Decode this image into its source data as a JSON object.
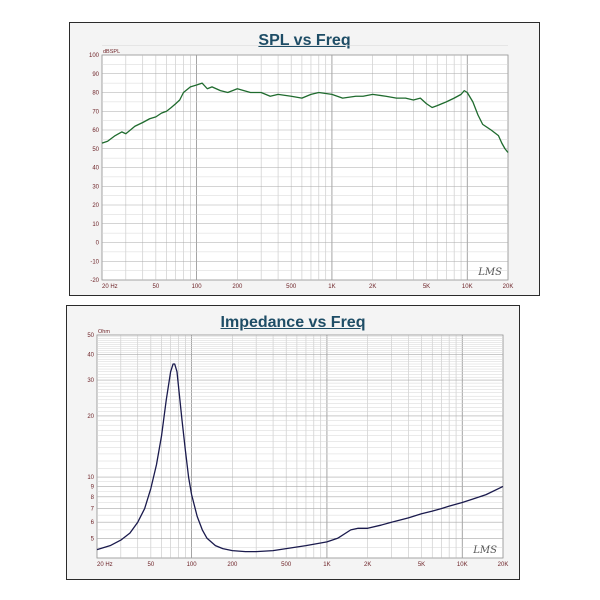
{
  "chart_data": [
    {
      "type": "line",
      "title": "SPL vs Freq",
      "y_unit": "dBSPL",
      "xscale": "log",
      "xlim": [
        20,
        20000
      ],
      "ylim": [
        -20,
        100
      ],
      "grid": true,
      "x_ticks": [
        "20 Hz",
        "50",
        "100",
        "200",
        "500",
        "1K",
        "2K",
        "5K",
        "10K",
        "20K"
      ],
      "y_ticks": [
        "100",
        "90",
        "80",
        "70",
        "60",
        "50",
        "40",
        "30",
        "20",
        "10",
        "0",
        "-10",
        "-20"
      ],
      "watermark": "LMS",
      "series": [
        {
          "color": "#1f6b2e",
          "x": [
            20,
            22,
            25,
            28,
            30,
            35,
            40,
            45,
            50,
            55,
            60,
            65,
            70,
            75,
            80,
            90,
            100,
            110,
            120,
            130,
            150,
            170,
            200,
            250,
            300,
            350,
            400,
            500,
            600,
            700,
            800,
            1000,
            1200,
            1500,
            1700,
            2000,
            2500,
            3000,
            3500,
            4000,
            4500,
            5000,
            5500,
            6000,
            7000,
            8000,
            9000,
            9500,
            10000,
            11000,
            12000,
            13000,
            15000,
            17000,
            18000,
            19000,
            20000
          ],
          "y": [
            53,
            54,
            57,
            59,
            58,
            62,
            64,
            66,
            67,
            69,
            70,
            72,
            74,
            76,
            80,
            83,
            84,
            85,
            82,
            83,
            81,
            80,
            82,
            80,
            80,
            78,
            79,
            78,
            77,
            79,
            80,
            79,
            77,
            78,
            78,
            79,
            78,
            77,
            77,
            76,
            77,
            74,
            72,
            73,
            75,
            77,
            79,
            81,
            80,
            75,
            68,
            63,
            60,
            57,
            53,
            50,
            48
          ]
        }
      ]
    },
    {
      "type": "line",
      "title": "Impedance vs Freq",
      "y_unit": "Ohm",
      "xscale": "log",
      "yscale": "log",
      "xlim": [
        20,
        20000
      ],
      "ylim": [
        4,
        50
      ],
      "grid": true,
      "x_ticks": [
        "20 Hz",
        "50",
        "100",
        "200",
        "500",
        "1K",
        "2K",
        "5K",
        "10K",
        "20K"
      ],
      "y_ticks": [
        "50",
        "40",
        "30",
        "20",
        "10",
        "9",
        "8",
        "7",
        "6",
        "5"
      ],
      "watermark": "LMS",
      "series": [
        {
          "color": "#1a1a4d",
          "x": [
            20,
            25,
            30,
            35,
            40,
            45,
            50,
            55,
            60,
            65,
            70,
            73,
            75,
            78,
            80,
            85,
            90,
            95,
            100,
            110,
            120,
            130,
            150,
            170,
            200,
            250,
            300,
            400,
            500,
            700,
            1000,
            1200,
            1500,
            1700,
            2000,
            2500,
            3000,
            4000,
            5000,
            6000,
            7000,
            8000,
            10000,
            12000,
            15000,
            20000
          ],
          "y": [
            4.4,
            4.6,
            4.9,
            5.3,
            6.0,
            7.0,
            8.8,
            11.5,
            16,
            24,
            33,
            36,
            36,
            33,
            28,
            19,
            13.5,
            10,
            8.2,
            6.4,
            5.5,
            5.0,
            4.6,
            4.45,
            4.35,
            4.3,
            4.3,
            4.35,
            4.45,
            4.6,
            4.8,
            5.0,
            5.5,
            5.6,
            5.6,
            5.8,
            6.0,
            6.3,
            6.6,
            6.8,
            7.0,
            7.2,
            7.5,
            7.8,
            8.2,
            9.0
          ]
        }
      ]
    }
  ]
}
